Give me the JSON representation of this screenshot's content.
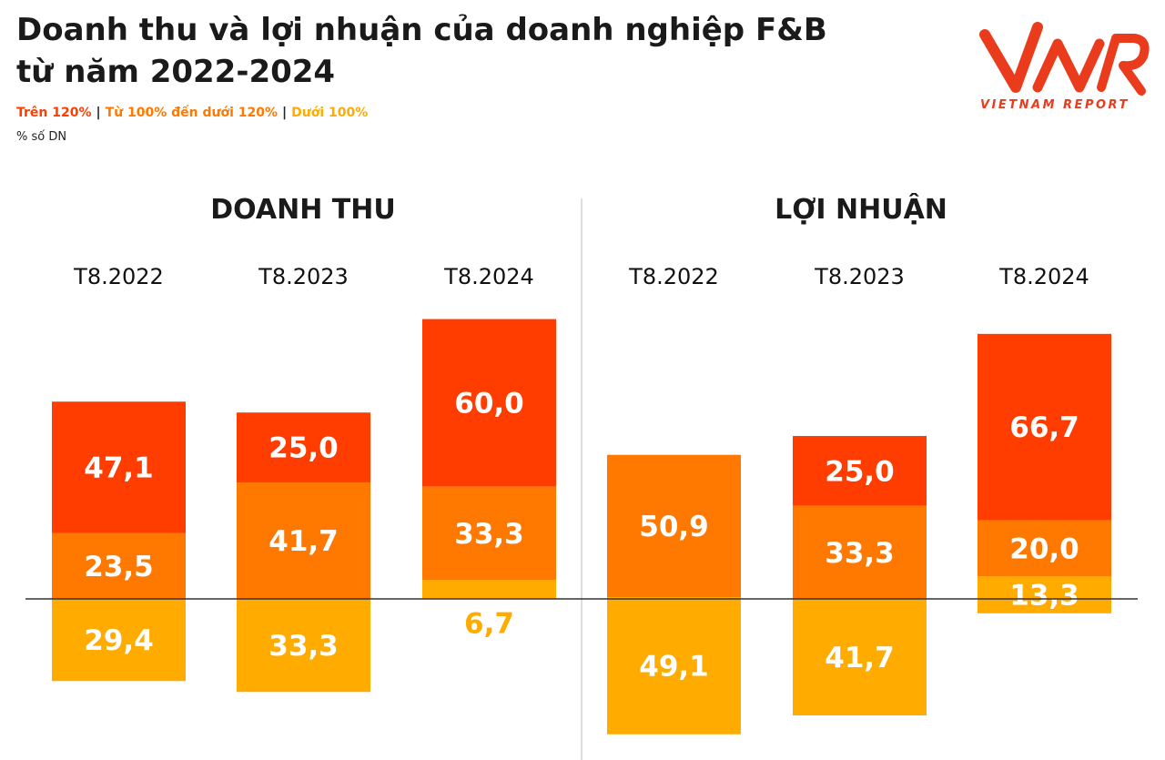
{
  "title_line1": "Doanh thu và lợi nhuận của doanh nghiệp F&B",
  "title_line2": "từ năm 2022-2024",
  "legend": [
    {
      "label": "Trên 120%",
      "color": "#ff3d00"
    },
    {
      "label": "Từ 100% đến dưới 120%",
      "color": "#ff7800"
    },
    {
      "label": "Dưới 100%",
      "color": "#ffab00"
    }
  ],
  "legend_separator": "|",
  "unit": "% số DN",
  "logo": {
    "text": "VIETNAM REPORT",
    "mark": "VNR",
    "color": "#ea3b1c"
  },
  "colors": {
    "above_120": "#ff3d00",
    "from_100_to_120": "#ff7800",
    "below_100": "#ffab00",
    "baseline": "#333333",
    "divider": "#bbbbbb"
  },
  "chart_data": [
    {
      "type": "bar",
      "title": "DOANH THU",
      "categories": [
        "T8.2022",
        "T8.2023",
        "T8.2024"
      ],
      "series": [
        {
          "name": "Trên 120%",
          "values": [
            47.1,
            25.0,
            60.0
          ],
          "labels": [
            "47,1",
            "25,0",
            "60,0"
          ]
        },
        {
          "name": "Từ 100% đến dưới 120%",
          "values": [
            23.5,
            41.7,
            33.3
          ],
          "labels": [
            "23,5",
            "41,7",
            "33,3"
          ]
        },
        {
          "name": "Dưới 100%",
          "values": [
            29.4,
            33.3,
            6.7
          ],
          "labels": [
            "29,4",
            "33,3",
            "6,7"
          ]
        }
      ]
    },
    {
      "type": "bar",
      "title": "LỢI NHUẬN",
      "categories": [
        "T8.2022",
        "T8.2023",
        "T8.2024"
      ],
      "series": [
        {
          "name": "Trên 120%",
          "values": [
            0,
            25.0,
            66.7
          ],
          "labels": [
            "",
            "25,0",
            "66,7"
          ]
        },
        {
          "name": "Từ 100% đến dưới 120%",
          "values": [
            50.9,
            33.3,
            20.0
          ],
          "labels": [
            "50,9",
            "33,3",
            "20,0"
          ]
        },
        {
          "name": "Dưới 100%",
          "values": [
            49.1,
            41.7,
            13.3
          ],
          "labels": [
            "49,1",
            "41,7",
            "13,3"
          ]
        }
      ]
    }
  ]
}
